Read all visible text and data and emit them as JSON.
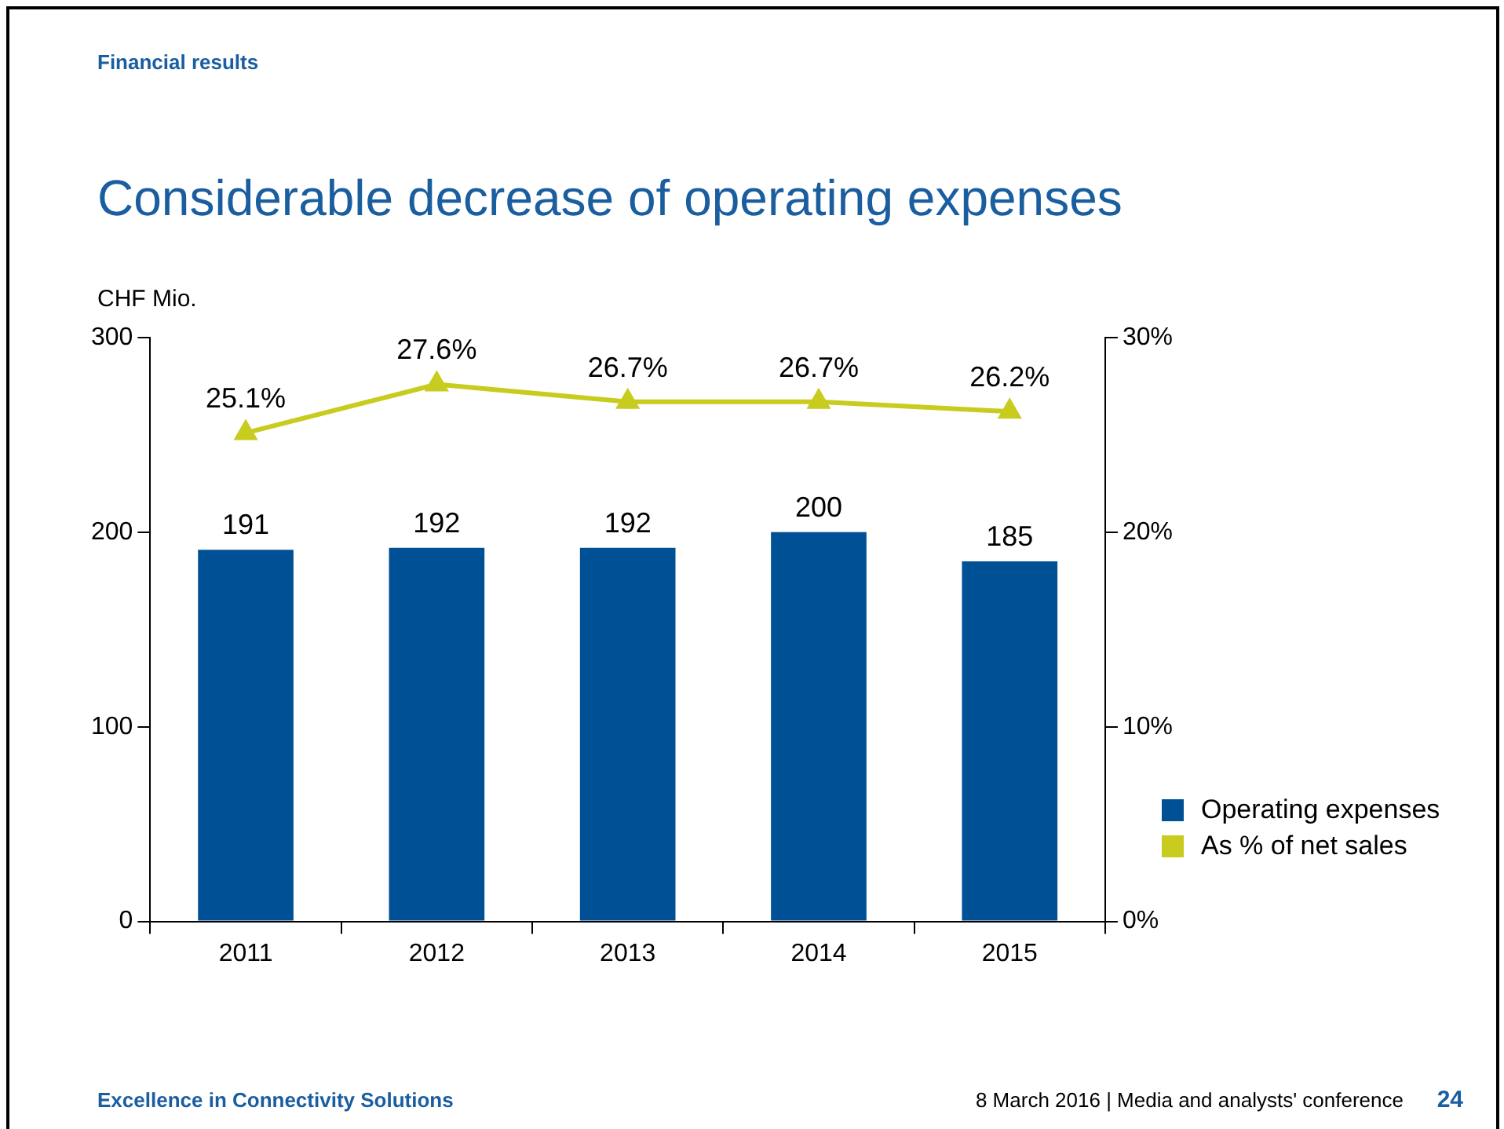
{
  "chart_data": {
    "type": "bar",
    "title": "Considerable decrease of operating expenses",
    "ylabel": "CHF Mio.",
    "annotations": [
      "Financial results",
      "Excellence in Connectivity Solutions",
      "8 March 2016 | Media and analysts' conference",
      "24"
    ],
    "categories": [
      "2011",
      "2012",
      "2013",
      "2014",
      "2015"
    ],
    "series": [
      {
        "name": "Operating expenses",
        "color": "#005096",
        "values": [
          191,
          192,
          192,
          200,
          185
        ]
      },
      {
        "name": "As % of net sales",
        "type": "line",
        "axis": "y2",
        "color": "#c8cc1e",
        "marker": "triangle",
        "values": [
          25.1,
          27.6,
          26.7,
          26.7,
          26.2
        ],
        "value_labels": [
          "25.1%",
          "27.6%",
          "26.7%",
          "26.7%",
          "26.2%"
        ]
      }
    ],
    "data_labels": true,
    "ylim": [
      0,
      300
    ],
    "yticks": [
      0,
      100,
      200,
      300
    ],
    "y2lim": [
      0,
      30
    ],
    "y2ticks": [
      {
        "value": 0,
        "label": "0%"
      },
      {
        "value": 10,
        "label": "10%"
      },
      {
        "value": 20,
        "label": "20%"
      },
      {
        "value": 30,
        "label": "30%"
      }
    ],
    "grid": false,
    "legend": "right"
  }
}
